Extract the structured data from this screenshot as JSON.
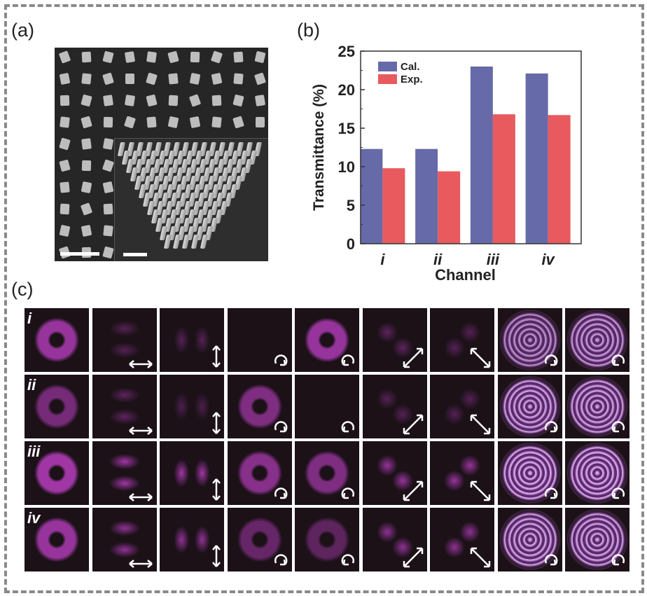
{
  "panels": {
    "a": "(a)",
    "b": "(b)",
    "c": "(c)"
  },
  "chart_data": {
    "type": "bar",
    "categories": [
      "i",
      "ii",
      "iii",
      "iv"
    ],
    "series": [
      {
        "name": "Cal.",
        "values": [
          12.3,
          12.3,
          23.0,
          22.1
        ],
        "color": "#666aa8"
      },
      {
        "name": "Exp.",
        "values": [
          9.8,
          9.4,
          16.8,
          16.7
        ],
        "color": "#e85a5e"
      }
    ],
    "xlabel": "Channel",
    "ylabel": "Transmittance (%)",
    "ylim": [
      0,
      25
    ],
    "yticks": [
      "0",
      "5",
      "10",
      "15",
      "20",
      "25"
    ],
    "legend": "top-left",
    "grid": false
  },
  "grid": {
    "rows": [
      "i",
      "ii",
      "iii",
      "iv"
    ],
    "column_indicators": [
      "none",
      "horizontal-arrow",
      "vertical-arrow",
      "clockwise-arrow",
      "counterclockwise-arrow",
      "diagonal-arrow-ne",
      "diagonal-arrow-nw",
      "clockwise-arrow",
      "counterclockwise-arrow"
    ],
    "spot_color": "#c040c8"
  }
}
